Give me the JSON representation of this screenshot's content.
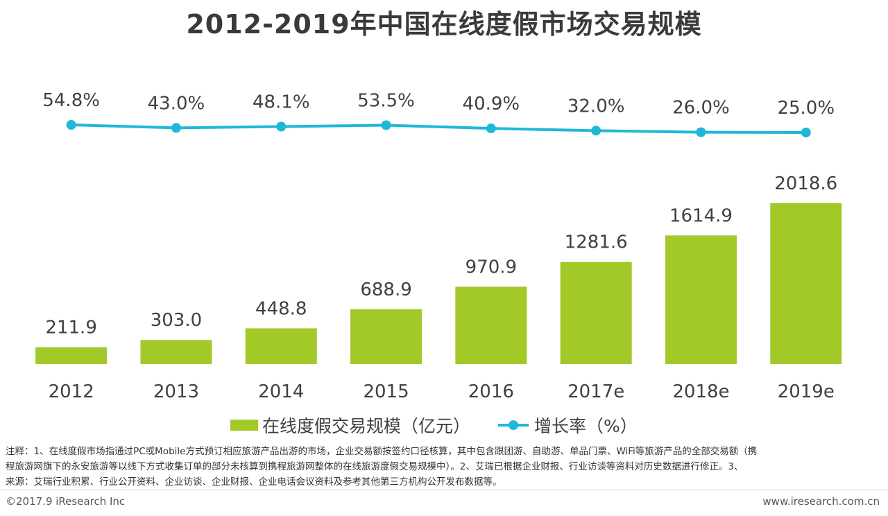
{
  "title": "2012-2019年中国在线度假市场交易规模",
  "chart_data": {
    "type": "bar+line",
    "categories": [
      "2012",
      "2013",
      "2014",
      "2015",
      "2016",
      "2017e",
      "2018e",
      "2019e"
    ],
    "series": [
      {
        "name": "在线度假交易规模（亿元）",
        "type": "bar",
        "color": "#a3c929",
        "values": [
          211.9,
          303.0,
          448.8,
          688.9,
          970.9,
          1281.6,
          1614.9,
          2018.6
        ],
        "labels": [
          "211.9",
          "303.0",
          "448.8",
          "688.9",
          "970.9",
          "1281.6",
          "1614.9",
          "2018.6"
        ]
      },
      {
        "name": "增长率（%）",
        "type": "line",
        "color": "#1fb8d9",
        "values": [
          54.8,
          43.0,
          48.1,
          53.5,
          40.9,
          32.0,
          26.0,
          25.0
        ],
        "labels": [
          "54.8%",
          "43.0%",
          "48.1%",
          "53.5%",
          "40.9%",
          "32.0%",
          "26.0%",
          "25.0%"
        ]
      }
    ],
    "xlabel": "",
    "ylabel": "",
    "grid": false,
    "legend": "bottom"
  },
  "legend": {
    "bar_label": "在线度假交易规模（亿元）",
    "line_label": "增长率（%）"
  },
  "notes": [
    "注释：1、在线度假市场指通过PC或Mobile方式预订相应旅游产品出游的市场，企业交易额按签约口径核算，其中包含跟团游、自助游、单品门票、WiFi等旅游产品的全部交易额（携",
    "程旅游网旗下的永安旅游等以线下方式收集订单的部分未核算到携程旅游网整体的在线旅游度假交易规模中）。2、艾瑞已根据企业财报、行业访谈等资料对历史数据进行修正。3、",
    "来源：艾瑞行业积累、行业公开资料、企业访谈、企业财报、企业电话会议资料及参考其他第三方机构公开发布数据等。"
  ],
  "footer": {
    "copyright": "©2017.9 iResearch Inc",
    "website": "www.iresearch.com.cn"
  }
}
